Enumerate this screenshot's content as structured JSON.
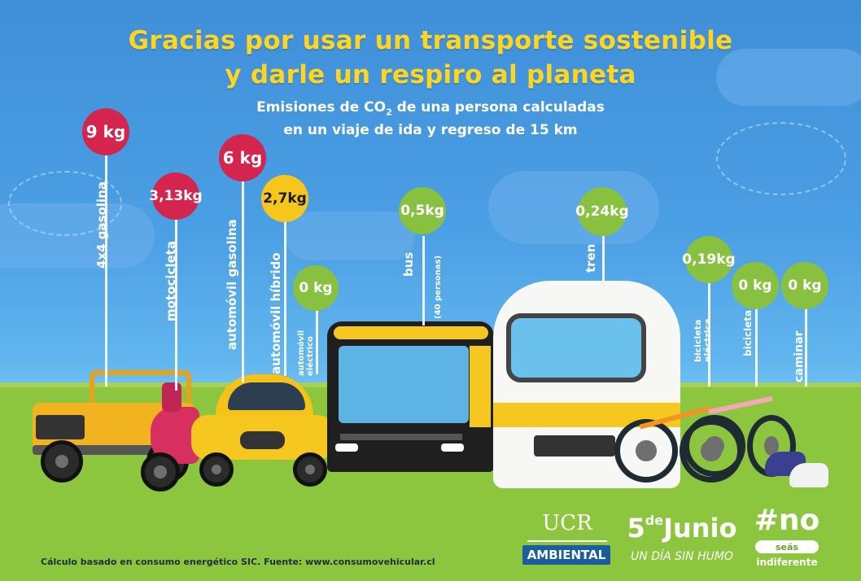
{
  "title": {
    "line1": "Gracias por usar un transporte sostenible",
    "line2": "y darle un respiro al planeta"
  },
  "subtitle": {
    "line1_pre": "Emisiones de CO",
    "line1_sub": "2",
    "line1_post": " de una persona calculadas",
    "line2": "en un viaje de ida y regreso de 15 km"
  },
  "items": [
    {
      "value": "9 kg",
      "label": "4x4 gasolina",
      "sublabel": "",
      "color": "#d4254f"
    },
    {
      "value": "3,13 kg",
      "label": "motocicleta",
      "sublabel": "",
      "color": "#d4254f"
    },
    {
      "value": "6 kg",
      "label": "automóvil gasolina",
      "sublabel": "",
      "color": "#d4254f"
    },
    {
      "value": "2,7 kg",
      "label": "automóvil híbrido",
      "sublabel": "",
      "color": "#f6c61b"
    },
    {
      "value": "0 kg",
      "label": "automóvil eléctrico",
      "sublabel": "",
      "color": "#88c13f"
    },
    {
      "value": "0,5 kg",
      "label": "bus",
      "sublabel": "(40 personas)",
      "color": "#88c13f"
    },
    {
      "value": "0,24 kg",
      "label": "tren",
      "sublabel": "",
      "color": "#88c13f"
    },
    {
      "value": "0,19 kg",
      "label": "bicicleta eléctrica",
      "sublabel": "",
      "color": "#88c13f"
    },
    {
      "value": "0 kg",
      "label": "bicicleta",
      "sublabel": "",
      "color": "#88c13f"
    },
    {
      "value": "0 kg",
      "label": "caminar",
      "sublabel": "",
      "color": "#88c13f"
    }
  ],
  "footer": {
    "note": "Cálculo basado en consumo energético SIC. Fuente: www.consumovehicular.cl"
  },
  "logos": {
    "ucr": "UCR",
    "ambiental": "AMBIENTAL",
    "junio_num": "5",
    "junio_de": "de",
    "junio_word": "Junio",
    "junio_sub": "UN DÍA SIN HUMO",
    "no_tag": "#no",
    "no_seas": "seás",
    "no_indiferente": "indiferente"
  }
}
